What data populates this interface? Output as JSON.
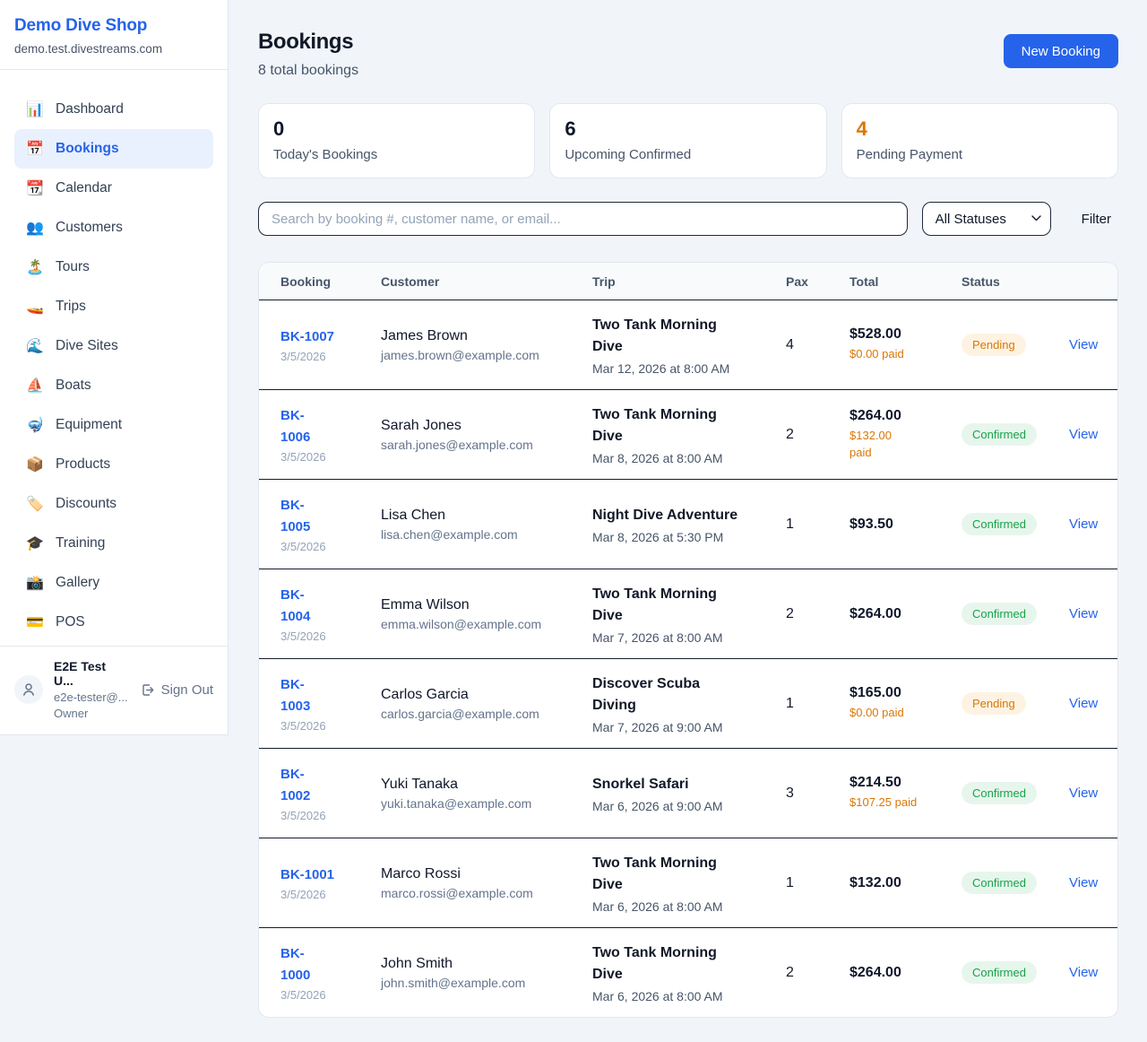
{
  "sidebar": {
    "brand": "Demo Dive Shop",
    "domain": "demo.test.divestreams.com",
    "nav": [
      {
        "label": "Dashboard",
        "icon": "bar-chart-icon",
        "glyph": "📊",
        "active": false
      },
      {
        "label": "Bookings",
        "icon": "calendar-icon",
        "glyph": "📅",
        "active": true
      },
      {
        "label": "Calendar",
        "icon": "tearoff-calendar-icon",
        "glyph": "📆",
        "active": false
      },
      {
        "label": "Customers",
        "icon": "people-icon",
        "glyph": "👥",
        "active": false
      },
      {
        "label": "Tours",
        "icon": "island-icon",
        "glyph": "🏝️",
        "active": false
      },
      {
        "label": "Trips",
        "icon": "speedboat-icon",
        "glyph": "🚤",
        "active": false
      },
      {
        "label": "Dive Sites",
        "icon": "wave-icon",
        "glyph": "🌊",
        "active": false
      },
      {
        "label": "Boats",
        "icon": "sailboat-icon",
        "glyph": "⛵",
        "active": false
      },
      {
        "label": "Equipment",
        "icon": "diving-mask-icon",
        "glyph": "🤿",
        "active": false
      },
      {
        "label": "Products",
        "icon": "package-icon",
        "glyph": "📦",
        "active": false
      },
      {
        "label": "Discounts",
        "icon": "label-tag-icon",
        "glyph": "🏷️",
        "active": false
      },
      {
        "label": "Training",
        "icon": "graduation-cap-icon",
        "glyph": "🎓",
        "active": false
      },
      {
        "label": "Gallery",
        "icon": "camera-icon",
        "glyph": "📸",
        "active": false
      },
      {
        "label": "POS",
        "icon": "credit-card-icon",
        "glyph": "💳",
        "active": false
      }
    ],
    "user": {
      "name": "E2E Test U...",
      "email": "e2e-tester@...",
      "role": "Owner",
      "sign_out": "Sign Out"
    }
  },
  "header": {
    "title": "Bookings",
    "subtitle": "8 total bookings",
    "new_booking_label": "New Booking"
  },
  "stats": [
    {
      "value": "0",
      "label": "Today's Bookings",
      "highlight": false
    },
    {
      "value": "6",
      "label": "Upcoming Confirmed",
      "highlight": false
    },
    {
      "value": "4",
      "label": "Pending Payment",
      "highlight": true
    }
  ],
  "filters": {
    "search_placeholder": "Search by booking #, customer name, or email...",
    "status_select": "All Statuses",
    "filter_label": "Filter"
  },
  "table": {
    "columns": [
      "Booking",
      "Customer",
      "Trip",
      "Pax",
      "Total",
      "Status"
    ],
    "view_label": "View",
    "rows": [
      {
        "id": "BK-1007",
        "id_two_line": false,
        "date": "3/5/2026",
        "customer": "James Brown",
        "email": "james.brown@example.com",
        "trip": "Two Tank Morning Dive",
        "trip_datetime": "Mar 12, 2026 at 8:00 AM",
        "pax": "4",
        "total": "$528.00",
        "paid": "$0.00 paid",
        "paid_two_line": false,
        "status": "Pending"
      },
      {
        "id": "BK-1006",
        "id_two_line": true,
        "date": "3/5/2026",
        "customer": "Sarah Jones",
        "email": "sarah.jones@example.com",
        "trip": "Two Tank Morning Dive",
        "trip_datetime": "Mar 8, 2026 at 8:00 AM",
        "pax": "2",
        "total": "$264.00",
        "paid": "$132.00 paid",
        "paid_two_line": true,
        "status": "Confirmed"
      },
      {
        "id": "BK-1005",
        "id_two_line": true,
        "date": "3/5/2026",
        "customer": "Lisa Chen",
        "email": "lisa.chen@example.com",
        "trip": "Night Dive Adventure",
        "trip_datetime": "Mar 8, 2026 at 5:30 PM",
        "pax": "1",
        "total": "$93.50",
        "paid": null,
        "paid_two_line": false,
        "status": "Confirmed"
      },
      {
        "id": "BK-1004",
        "id_two_line": true,
        "date": "3/5/2026",
        "customer": "Emma Wilson",
        "email": "emma.wilson@example.com",
        "trip": "Two Tank Morning Dive",
        "trip_datetime": "Mar 7, 2026 at 8:00 AM",
        "pax": "2",
        "total": "$264.00",
        "paid": null,
        "paid_two_line": false,
        "status": "Confirmed"
      },
      {
        "id": "BK-1003",
        "id_two_line": true,
        "date": "3/5/2026",
        "customer": "Carlos Garcia",
        "email": "carlos.garcia@example.com",
        "trip": "Discover Scuba Diving",
        "trip_datetime": "Mar 7, 2026 at 9:00 AM",
        "pax": "1",
        "total": "$165.00",
        "paid": "$0.00 paid",
        "paid_two_line": false,
        "status": "Pending"
      },
      {
        "id": "BK-1002",
        "id_two_line": true,
        "date": "3/5/2026",
        "customer": "Yuki Tanaka",
        "email": "yuki.tanaka@example.com",
        "trip": "Snorkel Safari",
        "trip_datetime": "Mar 6, 2026 at 9:00 AM",
        "pax": "3",
        "total": "$214.50",
        "paid": "$107.25 paid",
        "paid_two_line": false,
        "status": "Confirmed"
      },
      {
        "id": "BK-1001",
        "id_two_line": false,
        "date": "3/5/2026",
        "customer": "Marco Rossi",
        "email": "marco.rossi@example.com",
        "trip": "Two Tank Morning Dive",
        "trip_datetime": "Mar 6, 2026 at 8:00 AM",
        "pax": "1",
        "total": "$132.00",
        "paid": null,
        "paid_two_line": false,
        "status": "Confirmed"
      },
      {
        "id": "BK-1000",
        "id_two_line": true,
        "date": "3/5/2026",
        "customer": "John Smith",
        "email": "john.smith@example.com",
        "trip": "Two Tank Morning Dive",
        "trip_datetime": "Mar 6, 2026 at 8:00 AM",
        "pax": "2",
        "total": "$264.00",
        "paid": null,
        "paid_two_line": false,
        "status": "Confirmed"
      }
    ]
  },
  "colors": {
    "accent_blue": "#2563EB",
    "pending_text": "#D97706",
    "pending_bg": "#FEF3E2",
    "confirmed_text": "#16A34A",
    "confirmed_bg": "#E7F6EC",
    "page_bg": "#F1F5F9"
  }
}
